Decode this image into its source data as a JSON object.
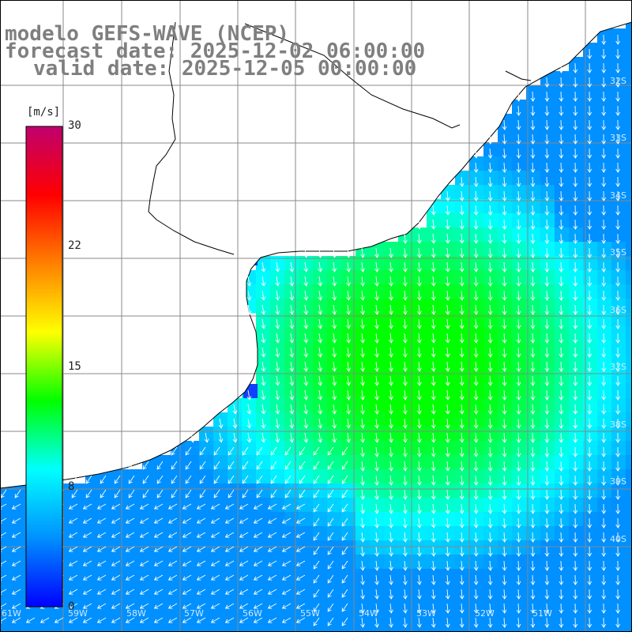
{
  "title": {
    "line1": "modelo GEFS-WAVE (NCEP)",
    "line2": "forecast date: 2025-12-02 06:00:00",
    "line3": "valid date: 2025-12-05 00:00:00"
  },
  "colorbar": {
    "unit": "[m/s]",
    "ticks": [
      {
        "label": "30",
        "value": 30
      },
      {
        "label": "22",
        "value": 22
      },
      {
        "label": "15",
        "value": 15
      },
      {
        "label": "8",
        "value": 8
      },
      {
        "label": "0",
        "value": 0
      }
    ],
    "colors": [
      "#0000ff",
      "#0090ff",
      "#00ffff",
      "#00ff00",
      "#ffff00",
      "#ff8000",
      "#ff0000",
      "#c0006e"
    ]
  },
  "map": {
    "field": "wind speed and direction",
    "land_color": "#ffffff",
    "coastline_color": "#000000",
    "grid_color": "#999999",
    "arrow_color": "#ffffff",
    "lat_labels": [
      "32S",
      "33S",
      "34S",
      "35S",
      "36S",
      "37S",
      "38S",
      "39S",
      "40S"
    ],
    "lon_labels": [
      "61W",
      "59W",
      "58W",
      "57W",
      "56W",
      "55W",
      "54W",
      "53W",
      "52W",
      "51W"
    ]
  }
}
